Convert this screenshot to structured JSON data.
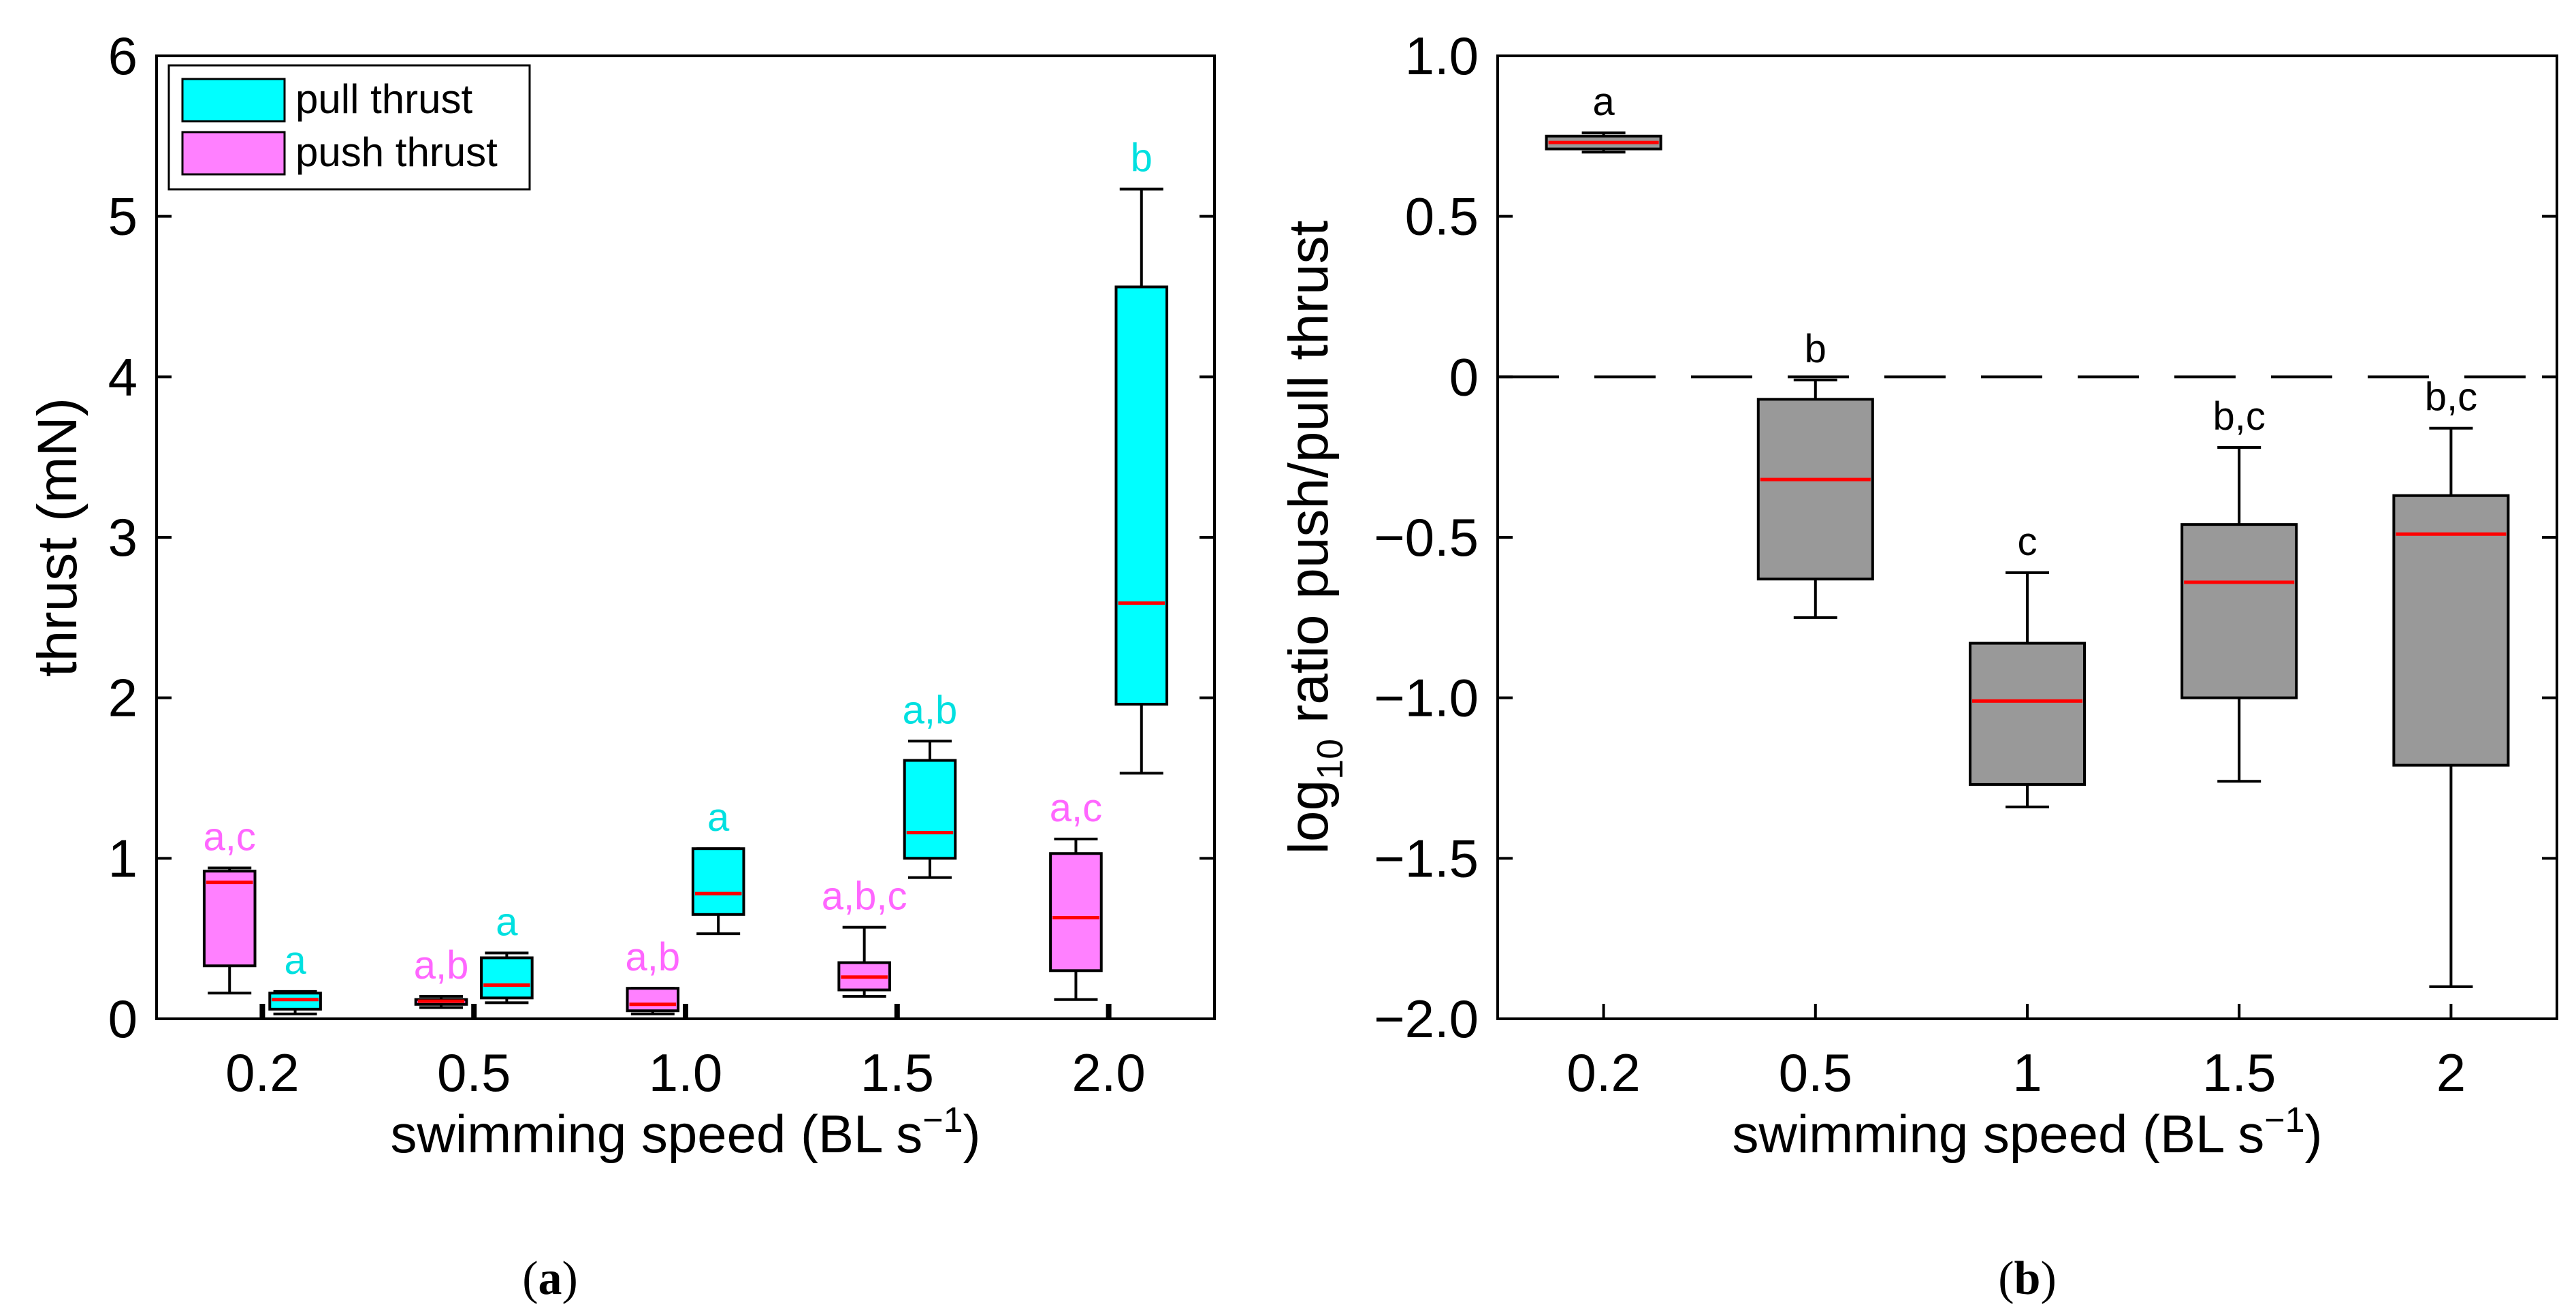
{
  "chart_data": [
    {
      "type": "box",
      "panel": "a",
      "panel_label": "a",
      "xlabel": "swimming speed (BL s",
      "xlabel_sup": "−1",
      "xlabel_end": ")",
      "ylabel": "thrust  (mN)",
      "ylim": [
        0,
        6
      ],
      "yticks": [
        "0",
        "1",
        "2",
        "3",
        "4",
        "5",
        "6"
      ],
      "categories": [
        "0.2",
        "0.5",
        "1.0",
        "1.5",
        "2.0"
      ],
      "legend": {
        "position": "top-left",
        "entries": [
          {
            "name": "pull thrust",
            "color": "#00ffff"
          },
          {
            "name": "push thrust",
            "color": "#ff80ff"
          }
        ]
      },
      "median_color": "#ff0000",
      "series": [
        {
          "name": "push thrust",
          "color": "#ff80ff",
          "label_color": "#ff66ff",
          "boxes": [
            {
              "category": "0.2",
              "min": 0.16,
              "q1": 0.33,
              "median": 0.85,
              "q3": 0.92,
              "max": 0.94,
              "letters": "a,c"
            },
            {
              "category": "0.5",
              "min": 0.07,
              "q1": 0.09,
              "median": 0.11,
              "q3": 0.12,
              "max": 0.14,
              "letters": "a,b"
            },
            {
              "category": "1.0",
              "min": 0.03,
              "q1": 0.05,
              "median": 0.09,
              "q3": 0.19,
              "max": 0.19,
              "letters": "a,b"
            },
            {
              "category": "1.5",
              "min": 0.14,
              "q1": 0.18,
              "median": 0.26,
              "q3": 0.35,
              "max": 0.57,
              "letters": "a,b,c"
            },
            {
              "category": "2.0",
              "min": 0.12,
              "q1": 0.3,
              "median": 0.63,
              "q3": 1.03,
              "max": 1.12,
              "letters": "a,c"
            }
          ]
        },
        {
          "name": "pull thrust",
          "color": "#00ffff",
          "label_color": "#00e0e0",
          "boxes": [
            {
              "category": "0.2",
              "min": 0.03,
              "q1": 0.06,
              "median": 0.12,
              "q3": 0.16,
              "max": 0.17,
              "letters": "a"
            },
            {
              "category": "0.5",
              "min": 0.1,
              "q1": 0.13,
              "median": 0.21,
              "q3": 0.38,
              "max": 0.41,
              "letters": "a"
            },
            {
              "category": "1.0",
              "min": 0.53,
              "q1": 0.65,
              "median": 0.78,
              "q3": 1.06,
              "max": 1.06,
              "letters": "a"
            },
            {
              "category": "1.5",
              "min": 0.88,
              "q1": 1.0,
              "median": 1.16,
              "q3": 1.61,
              "max": 1.73,
              "letters": "a,b"
            },
            {
              "category": "2.0",
              "min": 1.53,
              "q1": 1.96,
              "median": 2.59,
              "q3": 4.56,
              "max": 5.17,
              "letters": "b"
            }
          ]
        }
      ]
    },
    {
      "type": "box",
      "panel": "b",
      "panel_label": "b",
      "xlabel": "swimming speed (BL s",
      "xlabel_sup": "−1",
      "xlabel_end": ")",
      "ylabel_prefix": "log",
      "ylabel_sub": "10",
      "ylabel_rest": " ratio push/pull thrust",
      "ylim": [
        -2.0,
        1.0
      ],
      "yticks": [
        "−2.0",
        "−1.5",
        "−1.0",
        "−0.5",
        "0",
        "0.5",
        "1.0"
      ],
      "reference_line": 0,
      "categories": [
        "0.2",
        "0.5",
        "1",
        "1.5",
        "2"
      ],
      "box_color": "#999999",
      "median_color": "#ff0000",
      "boxes": [
        {
          "category": "0.2",
          "min": 0.7,
          "q1": 0.71,
          "median": 0.73,
          "q3": 0.75,
          "max": 0.76,
          "letters": "a"
        },
        {
          "category": "0.5",
          "min": -0.75,
          "q1": -0.63,
          "median": -0.32,
          "q3": -0.07,
          "max": -0.01,
          "letters": "b"
        },
        {
          "category": "1",
          "min": -1.34,
          "q1": -1.27,
          "median": -1.01,
          "q3": -0.83,
          "max": -0.61,
          "letters": "c"
        },
        {
          "category": "1.5",
          "min": -1.26,
          "q1": -1.0,
          "median": -0.64,
          "q3": -0.46,
          "max": -0.22,
          "letters": "b,c"
        },
        {
          "category": "2",
          "min": -1.9,
          "q1": -1.21,
          "median": -0.49,
          "q3": -0.37,
          "max": -0.16,
          "letters": "b,c"
        }
      ]
    }
  ]
}
